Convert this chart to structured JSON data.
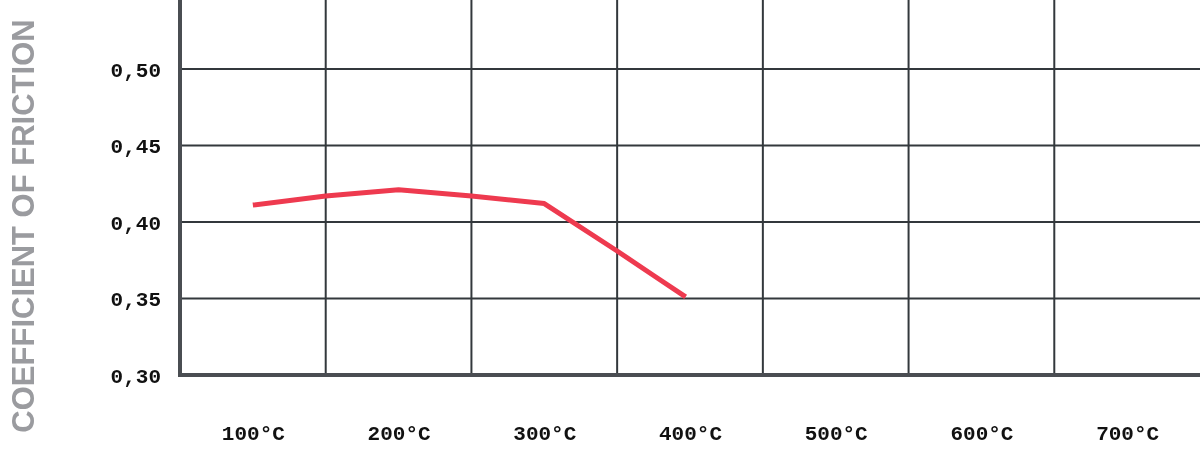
{
  "chart_data": {
    "type": "line",
    "ylabel": "COEFFICIENT OF FRICTION",
    "x": [
      100,
      150,
      200,
      250,
      300,
      350,
      375,
      397
    ],
    "series": [
      {
        "color": "#ee3a4f",
        "values": [
          0.411,
          0.417,
          0.421,
          0.417,
          0.412,
          0.381,
          0.365,
          0.351
        ]
      }
    ],
    "xlim": [
      50,
      750
    ],
    "ylim": [
      0.3,
      0.545
    ],
    "xticks": [
      {
        "value": 100,
        "label": "100°C"
      },
      {
        "value": 150,
        "label": null
      },
      {
        "value": 200,
        "label": "200°C"
      },
      {
        "value": 250,
        "label": null
      },
      {
        "value": 300,
        "label": "300°C"
      },
      {
        "value": 350,
        "label": null
      },
      {
        "value": 400,
        "label": "400°C"
      },
      {
        "value": 450,
        "label": null
      },
      {
        "value": 500,
        "label": "500°C"
      },
      {
        "value": 550,
        "label": null
      },
      {
        "value": 600,
        "label": "600°C"
      },
      {
        "value": 650,
        "label": null
      },
      {
        "value": 700,
        "label": "700°C"
      }
    ],
    "yticks": [
      {
        "value": 0.3,
        "label": "0,30"
      },
      {
        "value": 0.35,
        "label": "0,35"
      },
      {
        "value": 0.4,
        "label": "0,40"
      },
      {
        "value": 0.45,
        "label": "0,45"
      },
      {
        "value": 0.5,
        "label": "0,50"
      }
    ],
    "grid": true,
    "line_style": "solid"
  }
}
